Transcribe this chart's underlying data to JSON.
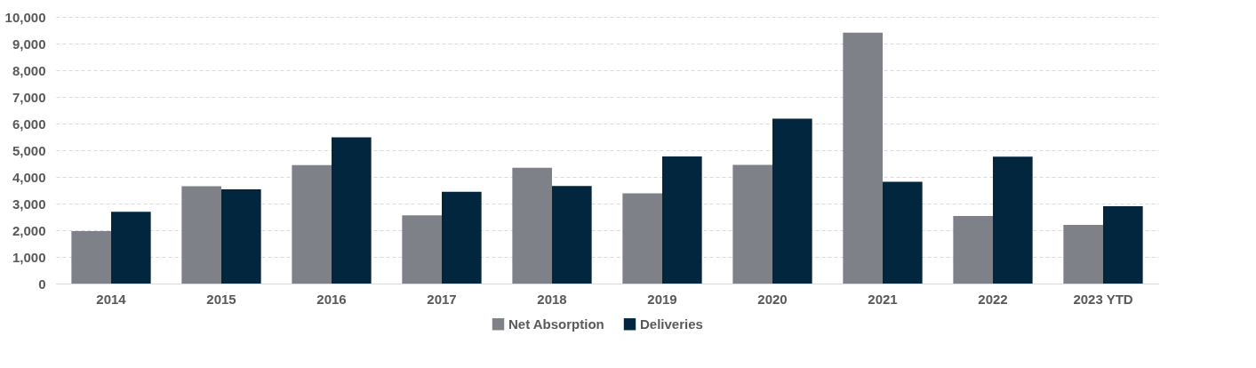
{
  "chart_data": {
    "type": "bar",
    "categories": [
      "2014",
      "2015",
      "2016",
      "2017",
      "2018",
      "2019",
      "2020",
      "2021",
      "2022",
      "2023 YTD"
    ],
    "series": [
      {
        "name": "Net Absorption",
        "color": "#7f8189",
        "values": [
          1970,
          3650,
          4440,
          2560,
          4340,
          3380,
          4450,
          9410,
          2530,
          2200
        ]
      },
      {
        "name": "Deliveries",
        "color": "#03263f",
        "values": [
          2690,
          3530,
          5480,
          3440,
          3660,
          4770,
          6180,
          3820,
          4760,
          2900
        ]
      }
    ],
    "ylim": [
      0,
      10000
    ],
    "yticks": [
      0,
      {
        "value": 1000,
        "label": "1,000"
      },
      {
        "value": 2000,
        "label": "2,000"
      },
      {
        "value": 3000,
        "label": "3,000"
      },
      {
        "value": 4000,
        "label": "4,000"
      },
      {
        "value": 5000,
        "label": "5,000"
      },
      {
        "value": 6000,
        "label": "6,000"
      },
      {
        "value": 7000,
        "label": "7,000"
      },
      {
        "value": 8000,
        "label": "8,000"
      },
      {
        "value": 9000,
        "label": "9,000"
      },
      {
        "value": 10000,
        "label": "10,000"
      }
    ],
    "grid": "y",
    "legend": "bottom"
  }
}
